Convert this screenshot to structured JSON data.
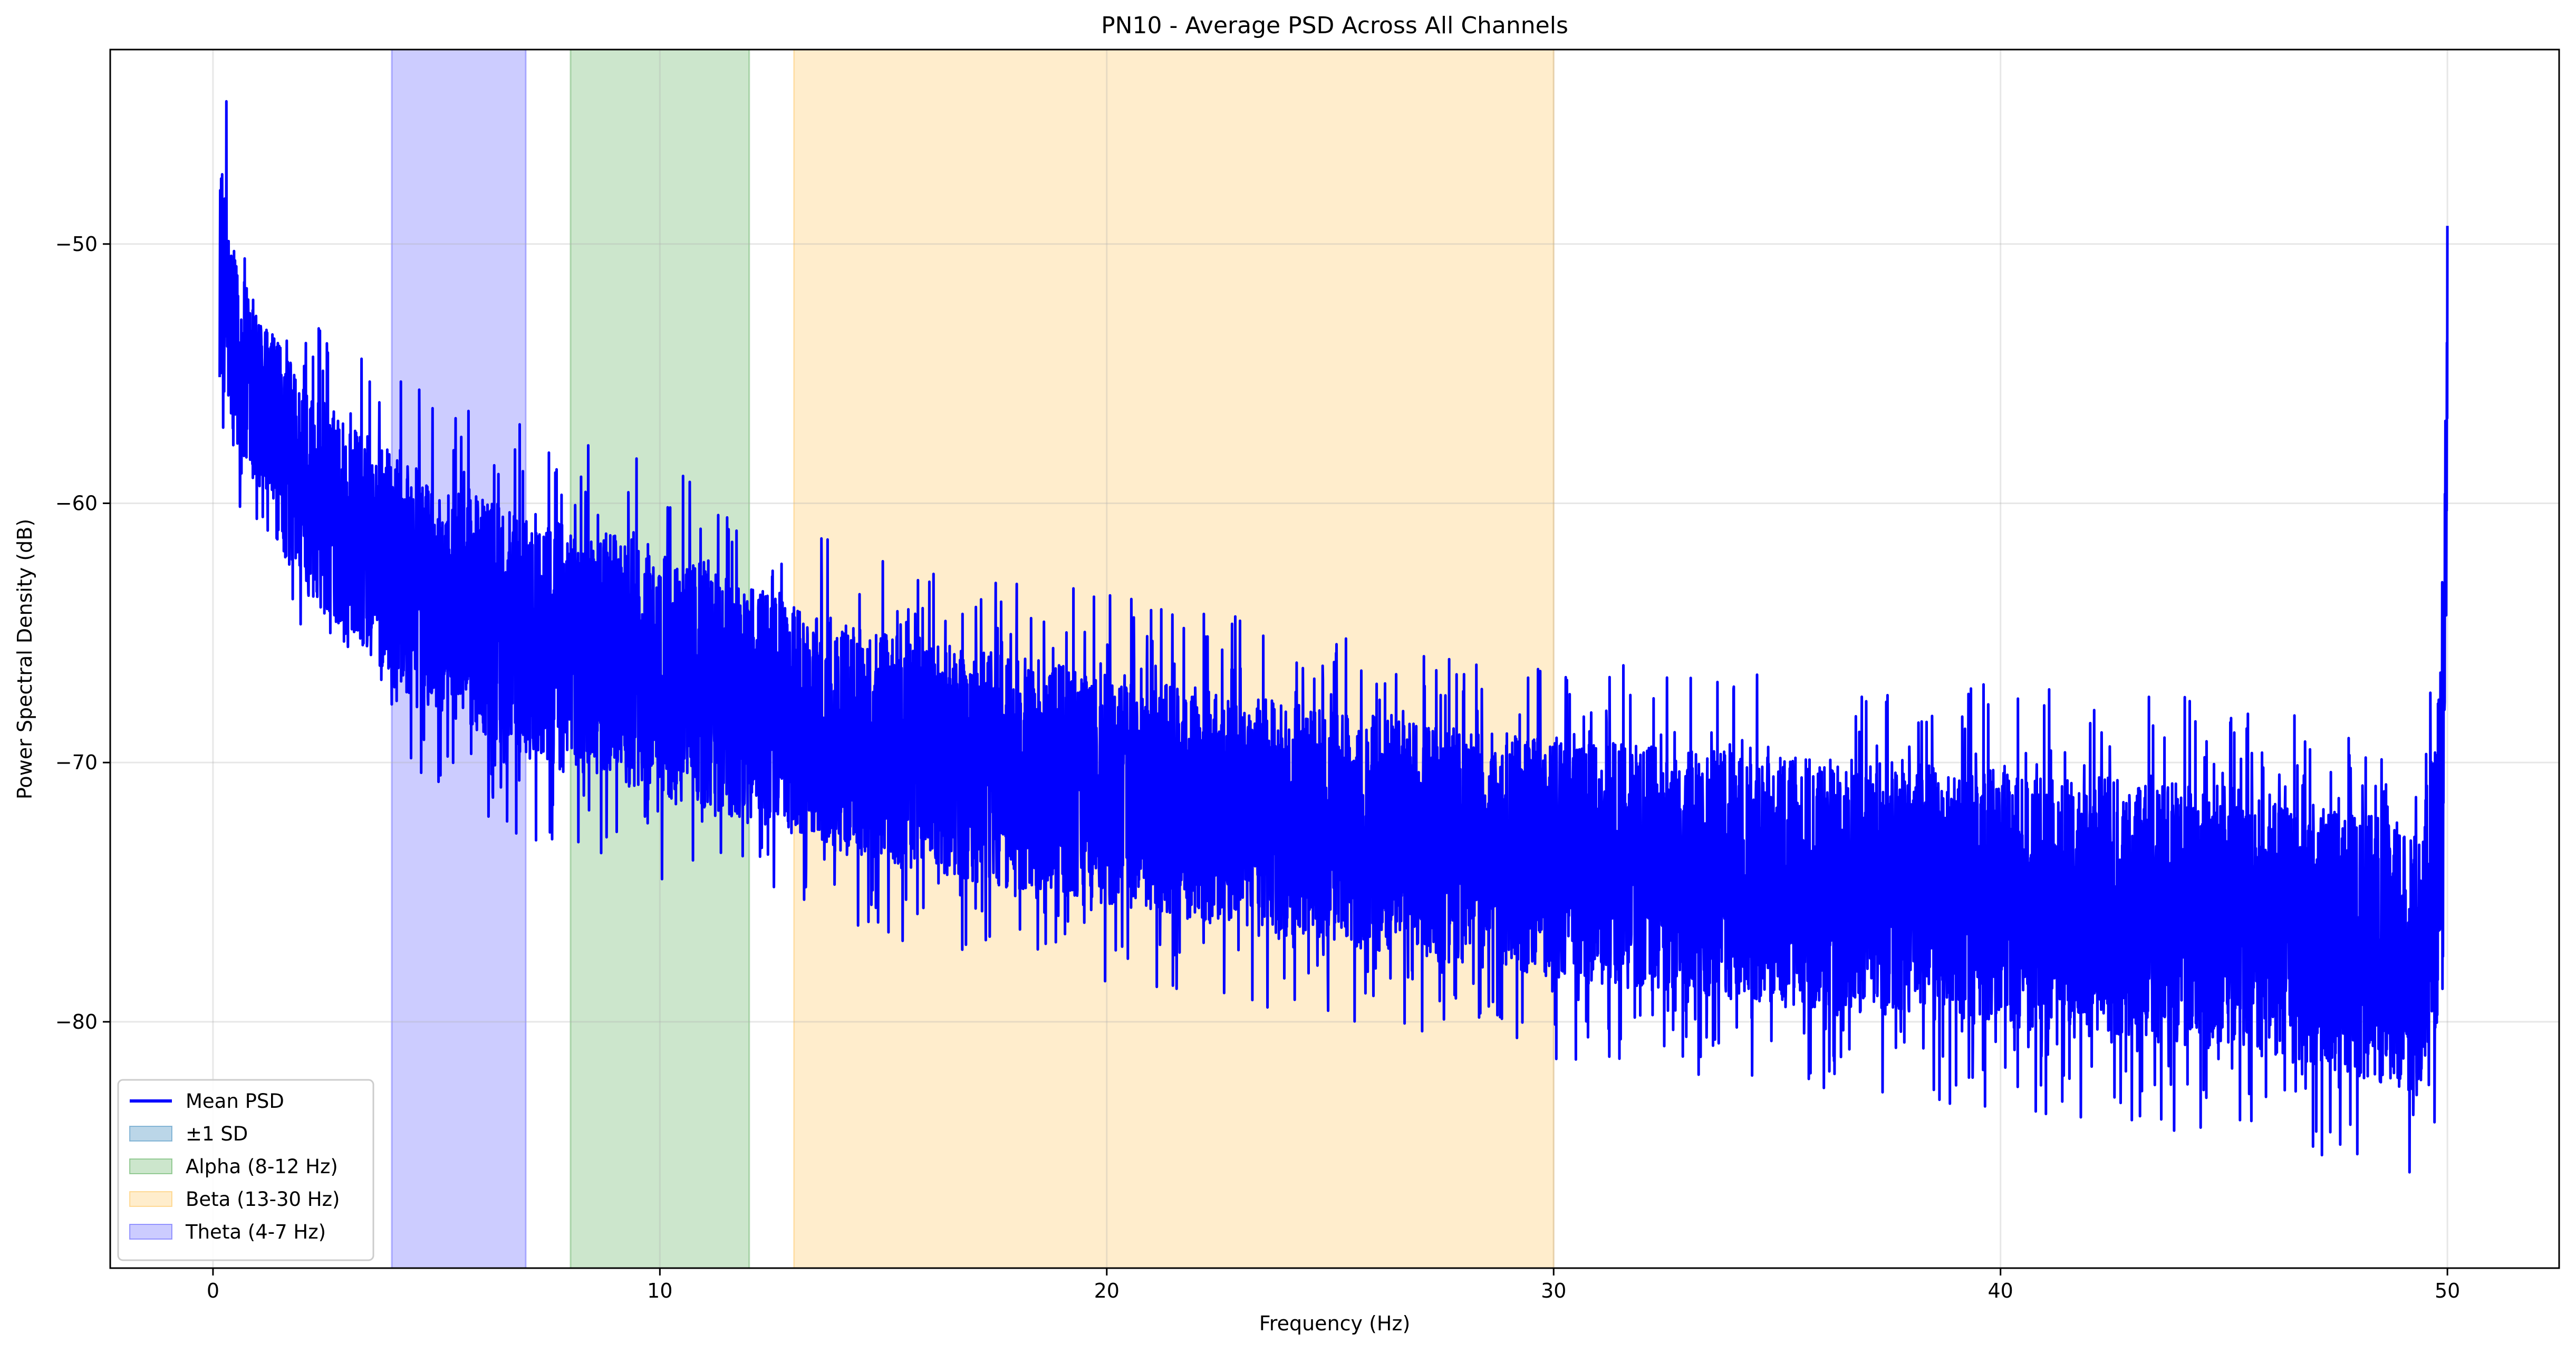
{
  "chart_data": {
    "type": "line",
    "title": "PN10 - Average PSD Across All Channels",
    "xlabel": "Frequency (Hz)",
    "ylabel": "Power Spectral Density (dB)",
    "xlim": [
      -2.3,
      52.5
    ],
    "ylim": [
      -89.5,
      -42.5
    ],
    "xticks": [
      0,
      10,
      20,
      30,
      40,
      50
    ],
    "yticks": [
      -80,
      -70,
      -60,
      -50
    ],
    "xtick_labels": [
      "0",
      "10",
      "20",
      "30",
      "40",
      "50"
    ],
    "ytick_labels": [
      "−80",
      "−70",
      "−60",
      "−50"
    ],
    "grid": true,
    "legend_position": "lower-left",
    "bands": [
      {
        "name": "Theta (4-7 Hz)",
        "x_start": 4,
        "x_end": 7,
        "color": "#0000ff",
        "alpha": 0.2
      },
      {
        "name": "Alpha (8-12 Hz)",
        "x_start": 8,
        "x_end": 12,
        "color": "#008000",
        "alpha": 0.2
      },
      {
        "name": "Beta (13-30 Hz)",
        "x_start": 13,
        "x_end": 30,
        "color": "#ffa500",
        "alpha": 0.2
      }
    ],
    "series": [
      {
        "name": "Mean PSD",
        "color": "#0000ff",
        "x_range": [
          0.15,
          50.0
        ],
        "envelope_x": [
          0.2,
          0.5,
          1,
          2,
          3,
          4,
          5,
          6,
          7,
          8,
          9,
          10,
          11,
          12,
          13,
          15,
          20,
          25,
          30,
          35,
          40,
          45,
          48,
          49.4,
          49.9,
          50.0
        ],
        "envelope_upper": [
          -44.5,
          -48,
          -50,
          -52.5,
          -54,
          -55,
          -56,
          -56.5,
          -57,
          -57.5,
          -58,
          -58.5,
          -59,
          -60,
          -61,
          -62,
          -63.5,
          -65,
          -66,
          -66.5,
          -67,
          -67.5,
          -68.5,
          -69,
          -60,
          -49.3
        ],
        "envelope_lower": [
          -58,
          -61,
          -63,
          -66,
          -68,
          -70,
          -71,
          -72,
          -73,
          -73.5,
          -74,
          -74.5,
          -75,
          -75.5,
          -76,
          -77,
          -78.5,
          -80,
          -81.5,
          -82.5,
          -83.5,
          -84.5,
          -85.5,
          -86.5,
          -84,
          -62
        ],
        "peaks": [
          {
            "x": 0.3,
            "y": -44.5
          },
          {
            "x": 50.0,
            "y": -49.3
          }
        ]
      },
      {
        "name": "±1 SD",
        "color": "#1f77b4",
        "alpha": 0.3
      }
    ],
    "legend": [
      "Mean PSD",
      "±1 SD",
      "Alpha (8-12 Hz)",
      "Beta (13-30 Hz)",
      "Theta (4-7 Hz)"
    ]
  }
}
